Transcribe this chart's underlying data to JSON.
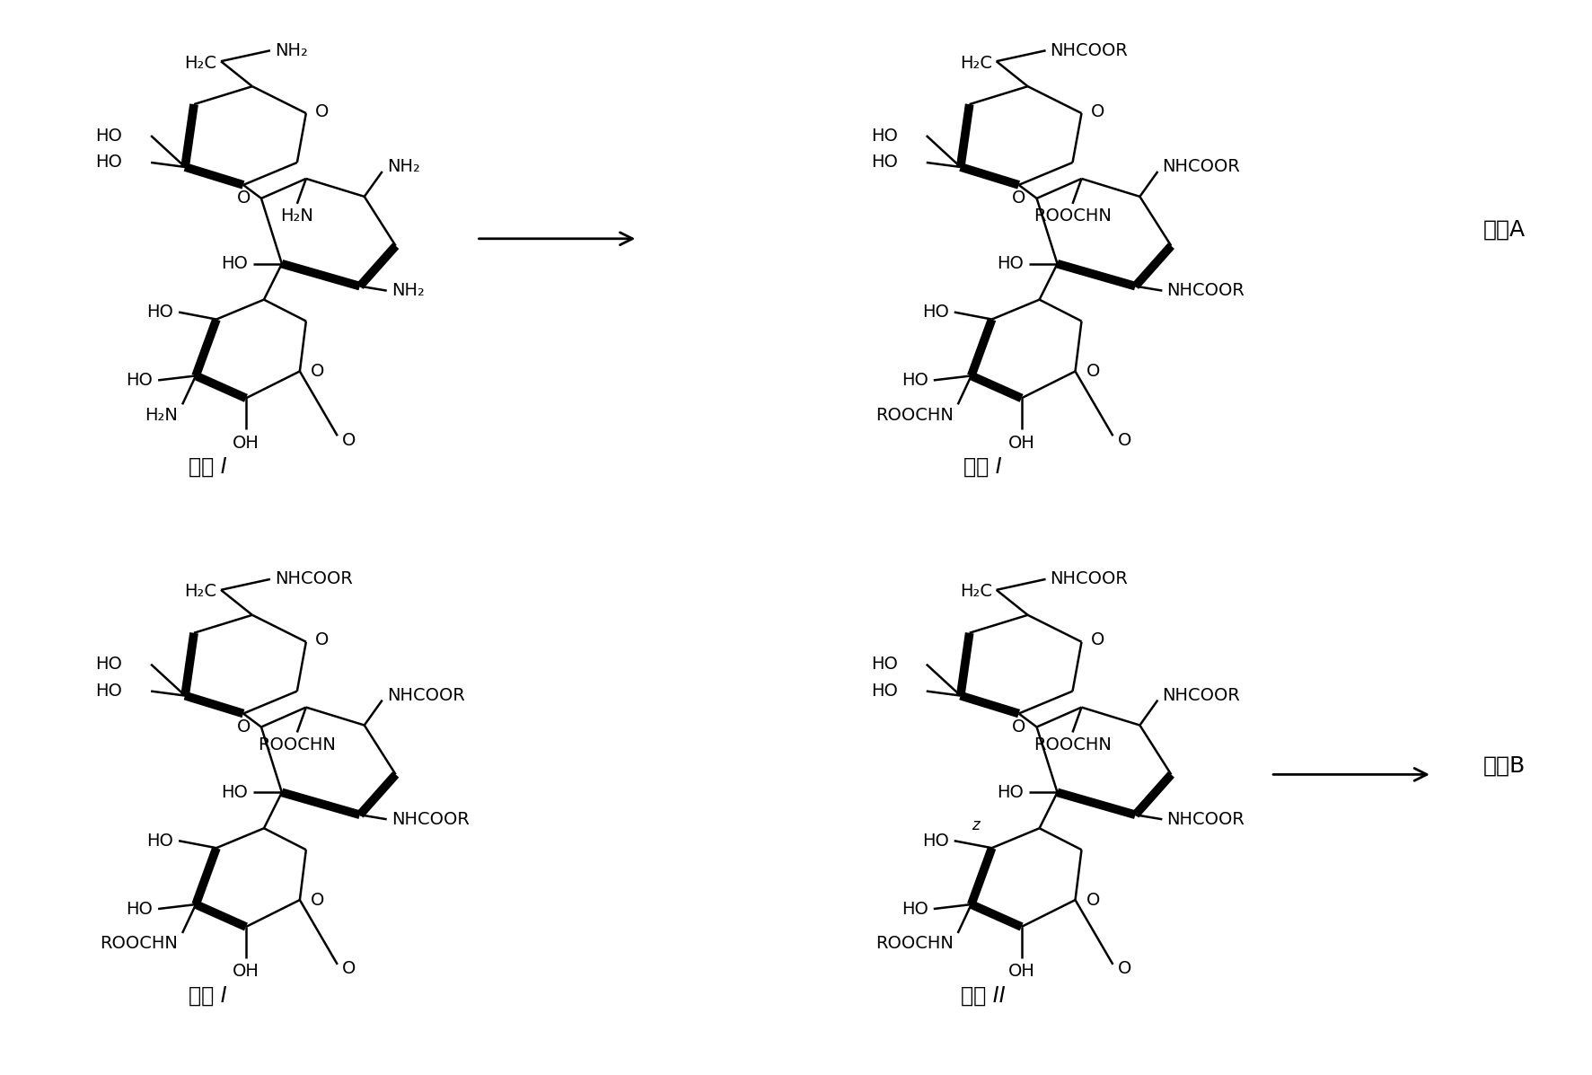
{
  "background_color": "#ffffff",
  "fig_width": 17.73,
  "fig_height": 11.97,
  "labels": {
    "raw_material": "原料 I",
    "product_I_top": "产物 I",
    "product_I_bottom": "产物 I",
    "product_II": "产物 II",
    "reaction_A": "反应A",
    "reaction_B": "反应B"
  }
}
